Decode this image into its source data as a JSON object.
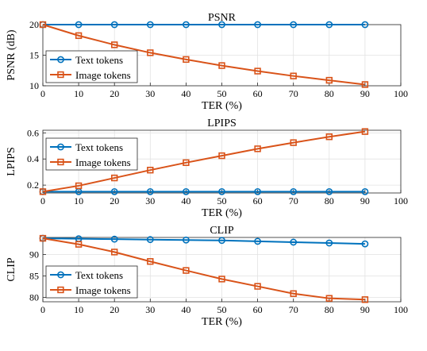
{
  "chart_data": [
    {
      "type": "line",
      "title": "PSNR",
      "xlabel": "TER (%)",
      "ylabel": "PSNR (dB)",
      "xlim": [
        0,
        100
      ],
      "ylim": [
        10,
        20
      ],
      "xticks": [
        0,
        10,
        20,
        30,
        40,
        50,
        60,
        70,
        80,
        90,
        100
      ],
      "yticks": [
        10,
        15,
        20
      ],
      "x": [
        0,
        10,
        20,
        30,
        40,
        50,
        60,
        70,
        80,
        90
      ],
      "grid": true,
      "legend": "left",
      "series": [
        {
          "name": "Text tokens",
          "color": "#0072BD",
          "marker": "circle",
          "values": [
            20,
            20,
            20,
            20,
            20,
            20,
            20,
            20,
            20,
            20
          ]
        },
        {
          "name": "Image tokens",
          "color": "#D95319",
          "marker": "square",
          "values": [
            20,
            18.2,
            16.7,
            15.4,
            14.3,
            13.3,
            12.4,
            11.6,
            10.9,
            10.2
          ]
        }
      ]
    },
    {
      "type": "line",
      "title": "LPIPS",
      "xlabel": "TER (%)",
      "ylabel": "LPIPS",
      "xlim": [
        0,
        100
      ],
      "ylim": [
        0.14,
        0.62
      ],
      "xticks": [
        0,
        10,
        20,
        30,
        40,
        50,
        60,
        70,
        80,
        90,
        100
      ],
      "yticks": [
        0.2,
        0.4,
        0.6
      ],
      "x": [
        0,
        10,
        20,
        30,
        40,
        50,
        60,
        70,
        80,
        90
      ],
      "grid": true,
      "legend": "top-left",
      "series": [
        {
          "name": "Text tokens",
          "color": "#0072BD",
          "marker": "circle",
          "values": [
            0.15,
            0.15,
            0.15,
            0.15,
            0.15,
            0.15,
            0.15,
            0.15,
            0.15,
            0.15
          ]
        },
        {
          "name": "Image tokens",
          "color": "#D95319",
          "marker": "square",
          "values": [
            0.15,
            0.195,
            0.255,
            0.315,
            0.372,
            0.425,
            0.478,
            0.525,
            0.57,
            0.61
          ]
        }
      ]
    },
    {
      "type": "line",
      "title": "CLIP",
      "xlabel": "TER (%)",
      "ylabel": "CLIP",
      "xlim": [
        0,
        100
      ],
      "ylim": [
        79,
        94
      ],
      "xticks": [
        0,
        10,
        20,
        30,
        40,
        50,
        60,
        70,
        80,
        90,
        100
      ],
      "yticks": [
        80,
        85,
        90
      ],
      "x": [
        0,
        10,
        20,
        30,
        40,
        50,
        60,
        70,
        80,
        90
      ],
      "grid": true,
      "legend": "bottom-left",
      "series": [
        {
          "name": "Text tokens",
          "color": "#0072BD",
          "marker": "circle",
          "values": [
            93.8,
            93.7,
            93.6,
            93.5,
            93.4,
            93.3,
            93.1,
            92.9,
            92.7,
            92.5
          ]
        },
        {
          "name": "Image tokens",
          "color": "#D95319",
          "marker": "square",
          "values": [
            93.8,
            92.4,
            90.6,
            88.4,
            86.3,
            84.3,
            82.6,
            80.9,
            79.8,
            79.5
          ]
        }
      ]
    }
  ]
}
